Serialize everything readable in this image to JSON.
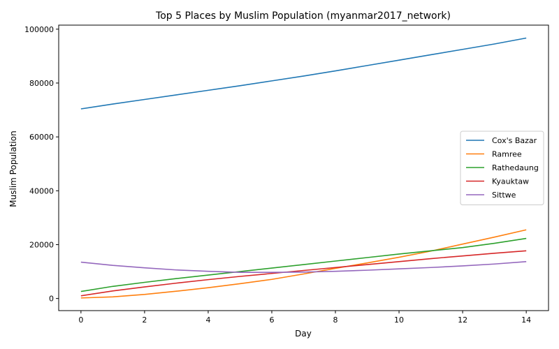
{
  "chart_data": {
    "type": "line",
    "title": "Top 5 Places by Muslim Population (myanmar2017_network)",
    "xlabel": "Day",
    "ylabel": "Muslim Population",
    "xlim": [
      -0.7,
      14.7
    ],
    "ylim": [
      -4500,
      101500
    ],
    "x_ticks": [
      0,
      2,
      4,
      6,
      8,
      10,
      12,
      14
    ],
    "y_ticks": [
      0,
      20000,
      40000,
      60000,
      80000,
      100000
    ],
    "grid": false,
    "legend_position": "center-right",
    "x": [
      0,
      1,
      2,
      3,
      4,
      5,
      6,
      7,
      8,
      9,
      10,
      11,
      12,
      13,
      14
    ],
    "series": [
      {
        "name": "Cox's Bazar",
        "color": "#1f77b4",
        "values": [
          70400,
          72200,
          73900,
          75600,
          77300,
          79000,
          80800,
          82600,
          84500,
          86500,
          88500,
          90500,
          92500,
          94500,
          96700
        ]
      },
      {
        "name": "Ramree",
        "color": "#ff7f0e",
        "values": [
          200,
          600,
          1500,
          2700,
          4000,
          5500,
          7100,
          9100,
          11200,
          13200,
          15300,
          17600,
          20200,
          22800,
          25500
        ]
      },
      {
        "name": "Rathedaung",
        "color": "#2ca02c",
        "values": [
          2600,
          4500,
          6000,
          7400,
          8700,
          10000,
          11300,
          12600,
          13900,
          15200,
          16500,
          17700,
          18900,
          20500,
          22300
        ]
      },
      {
        "name": "Kyauktaw",
        "color": "#d62728",
        "values": [
          1000,
          2800,
          4300,
          5700,
          7000,
          8200,
          9300,
          10400,
          11500,
          12600,
          13700,
          14800,
          15800,
          16800,
          17700
        ]
      },
      {
        "name": "Sittwe",
        "color": "#9467bd",
        "values": [
          13500,
          12300,
          11400,
          10600,
          10100,
          9700,
          9700,
          9800,
          10100,
          10500,
          11000,
          11500,
          12100,
          12800,
          13700
        ]
      }
    ]
  }
}
